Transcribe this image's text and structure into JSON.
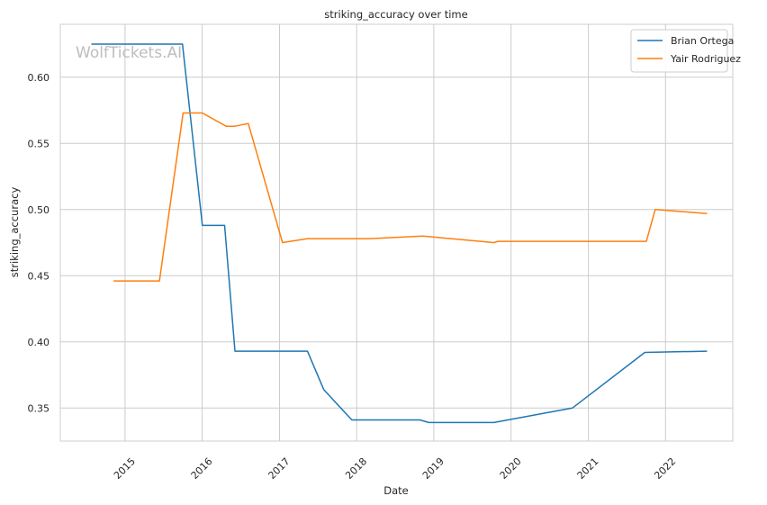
{
  "watermark": "WolfTickets.AI",
  "chart_data": {
    "type": "line",
    "title": "striking_accuracy over time",
    "xlabel": "Date",
    "ylabel": "striking_accuracy",
    "x_type": "date",
    "xlim": [
      "2014-03-01",
      "2022-11-15"
    ],
    "ylim": [
      0.325,
      0.64
    ],
    "x_ticks": [
      "2015-01-01",
      "2016-01-01",
      "2017-01-01",
      "2018-01-01",
      "2019-01-01",
      "2020-01-01",
      "2021-01-01",
      "2022-01-01"
    ],
    "x_tick_labels": [
      "2015",
      "2016",
      "2017",
      "2018",
      "2019",
      "2020",
      "2021",
      "2022"
    ],
    "y_ticks": [
      0.35,
      0.4,
      0.45,
      0.5,
      0.55,
      0.6
    ],
    "y_tick_labels": [
      "0.35",
      "0.40",
      "0.45",
      "0.50",
      "0.55",
      "0.60"
    ],
    "grid": true,
    "legend_position": "top-right",
    "series": [
      {
        "name": "Brian Ortega",
        "color": "#1f77b4",
        "x": [
          "2014-07-26",
          "2015-09-30",
          "2016-01-02",
          "2016-04-16",
          "2016-06-04",
          "2017-05-13",
          "2017-07-29",
          "2017-12-09",
          "2018-03-03",
          "2018-10-27",
          "2018-12-08",
          "2019-10-12",
          "2020-10-17",
          "2021-09-25",
          "2022-07-16"
        ],
        "y": [
          0.625,
          0.625,
          0.488,
          0.488,
          0.393,
          0.393,
          0.364,
          0.341,
          0.341,
          0.341,
          0.339,
          0.339,
          0.35,
          0.392,
          0.393
        ]
      },
      {
        "name": "Yair Rodriguez",
        "color": "#ff7f0e",
        "x": [
          "2014-11-08",
          "2015-06-13",
          "2015-10-03",
          "2016-01-02",
          "2016-04-23",
          "2016-06-04",
          "2016-08-06",
          "2017-01-15",
          "2017-05-13",
          "2018-03-03",
          "2018-11-10",
          "2019-10-12",
          "2019-11-01",
          "2021-10-02",
          "2021-11-13",
          "2022-07-16"
        ],
        "y": [
          0.446,
          0.446,
          0.573,
          0.573,
          0.563,
          0.563,
          0.565,
          0.475,
          0.478,
          0.478,
          0.48,
          0.475,
          0.476,
          0.476,
          0.5,
          0.497
        ]
      }
    ]
  }
}
